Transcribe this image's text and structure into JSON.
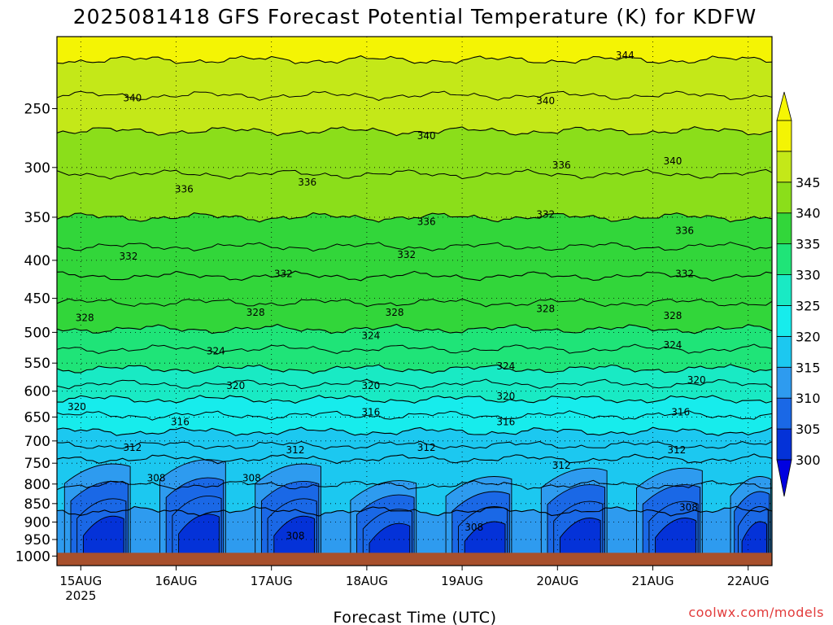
{
  "chart_data": {
    "type": "heatmap",
    "title": "2025081418 GFS Forecast Potential Temperature (K) for KDFW",
    "xlabel": "Forecast Time (UTC)",
    "ylabel": "",
    "y_scale": "log",
    "ylim": [
      1030,
      200
    ],
    "y_ticks": [
      250,
      300,
      350,
      400,
      450,
      500,
      550,
      600,
      650,
      700,
      750,
      800,
      850,
      900,
      950,
      1000
    ],
    "x_ticks": [
      {
        "label": "15AUG",
        "sub": "2025",
        "hours": 6
      },
      {
        "label": "16AUG",
        "hours": 30
      },
      {
        "label": "17AUG",
        "hours": 54
      },
      {
        "label": "18AUG",
        "hours": 78
      },
      {
        "label": "19AUG",
        "hours": 102
      },
      {
        "label": "20AUG",
        "hours": 126
      },
      {
        "label": "21AUG",
        "hours": 150
      },
      {
        "label": "22AUG",
        "hours": 174
      }
    ],
    "xlim_hours": [
      0,
      180
    ],
    "grid": true,
    "legend": "right colorbar",
    "colorbar": {
      "levels": [
        300,
        305,
        310,
        315,
        320,
        325,
        330,
        335,
        340,
        345
      ],
      "colors": [
        "#0432d8",
        "#1a68e6",
        "#2e9bef",
        "#1cc8f0",
        "#17ecec",
        "#19eac4",
        "#1fe478",
        "#32d63a",
        "#8bde1a",
        "#c4e818",
        "#f4f404"
      ],
      "under_color": "#0000e0",
      "over_color": "#f6f604"
    },
    "isotherms": [
      {
        "value": 308,
        "p": 870
      },
      {
        "value": 312,
        "p": 740
      },
      {
        "value": 316,
        "p": 680
      },
      {
        "value": 320,
        "p": 615
      },
      {
        "value": 324,
        "p": 560
      },
      {
        "value": 328,
        "p": 495
      },
      {
        "value": 332,
        "p": 420
      },
      {
        "value": 336,
        "p": 350
      },
      {
        "value": 340,
        "p": 268
      },
      {
        "value": 344,
        "p": 215
      }
    ],
    "contour_labels": [
      {
        "text": "344",
        "hours": 143,
        "p": 212
      },
      {
        "text": "340",
        "hours": 19,
        "p": 242
      },
      {
        "text": "340",
        "hours": 93,
        "p": 272
      },
      {
        "text": "340",
        "hours": 123,
        "p": 244
      },
      {
        "text": "340",
        "hours": 155,
        "p": 294
      },
      {
        "text": "336",
        "hours": 32,
        "p": 321
      },
      {
        "text": "336",
        "hours": 63,
        "p": 314
      },
      {
        "text": "336",
        "hours": 93,
        "p": 355
      },
      {
        "text": "336",
        "hours": 127,
        "p": 298
      },
      {
        "text": "336",
        "hours": 158,
        "p": 365
      },
      {
        "text": "332",
        "hours": 18,
        "p": 395
      },
      {
        "text": "332",
        "hours": 57,
        "p": 417
      },
      {
        "text": "332",
        "hours": 88,
        "p": 393
      },
      {
        "text": "332",
        "hours": 123,
        "p": 347
      },
      {
        "text": "332",
        "hours": 158,
        "p": 417
      },
      {
        "text": "328",
        "hours": 7,
        "p": 478
      },
      {
        "text": "328",
        "hours": 50,
        "p": 470
      },
      {
        "text": "328",
        "hours": 85,
        "p": 470
      },
      {
        "text": "328",
        "hours": 123,
        "p": 465
      },
      {
        "text": "328",
        "hours": 155,
        "p": 475
      },
      {
        "text": "324",
        "hours": 40,
        "p": 530
      },
      {
        "text": "324",
        "hours": 79,
        "p": 505
      },
      {
        "text": "324",
        "hours": 113,
        "p": 555
      },
      {
        "text": "324",
        "hours": 155,
        "p": 520
      },
      {
        "text": "320",
        "hours": 5,
        "p": 630
      },
      {
        "text": "320",
        "hours": 45,
        "p": 590
      },
      {
        "text": "320",
        "hours": 79,
        "p": 590
      },
      {
        "text": "320",
        "hours": 113,
        "p": 610
      },
      {
        "text": "320",
        "hours": 161,
        "p": 580
      },
      {
        "text": "316",
        "hours": 31,
        "p": 660
      },
      {
        "text": "316",
        "hours": 79,
        "p": 640
      },
      {
        "text": "316",
        "hours": 113,
        "p": 660
      },
      {
        "text": "316",
        "hours": 157,
        "p": 640
      },
      {
        "text": "312",
        "hours": 19,
        "p": 715
      },
      {
        "text": "312",
        "hours": 60,
        "p": 720
      },
      {
        "text": "312",
        "hours": 93,
        "p": 715
      },
      {
        "text": "312",
        "hours": 127,
        "p": 755
      },
      {
        "text": "312",
        "hours": 156,
        "p": 720
      },
      {
        "text": "308",
        "hours": 25,
        "p": 785
      },
      {
        "text": "308",
        "hours": 49,
        "p": 785
      },
      {
        "text": "308",
        "hours": 60,
        "p": 940
      },
      {
        "text": "308",
        "hours": 105,
        "p": 915
      },
      {
        "text": "308",
        "hours": 159,
        "p": 860
      }
    ],
    "boundary_layer_days": [
      {
        "start": 1,
        "end": 19,
        "top": 750
      },
      {
        "start": 25,
        "end": 43,
        "top": 740
      },
      {
        "start": 49,
        "end": 67,
        "top": 750
      },
      {
        "start": 73,
        "end": 91,
        "top": 790
      },
      {
        "start": 97,
        "end": 115,
        "top": 780
      },
      {
        "start": 121,
        "end": 139,
        "top": 760
      },
      {
        "start": 145,
        "end": 163,
        "top": 760
      },
      {
        "start": 169,
        "end": 180,
        "top": 780
      }
    ],
    "ground_p": 1000
  },
  "credit": "coolwx.com/models"
}
